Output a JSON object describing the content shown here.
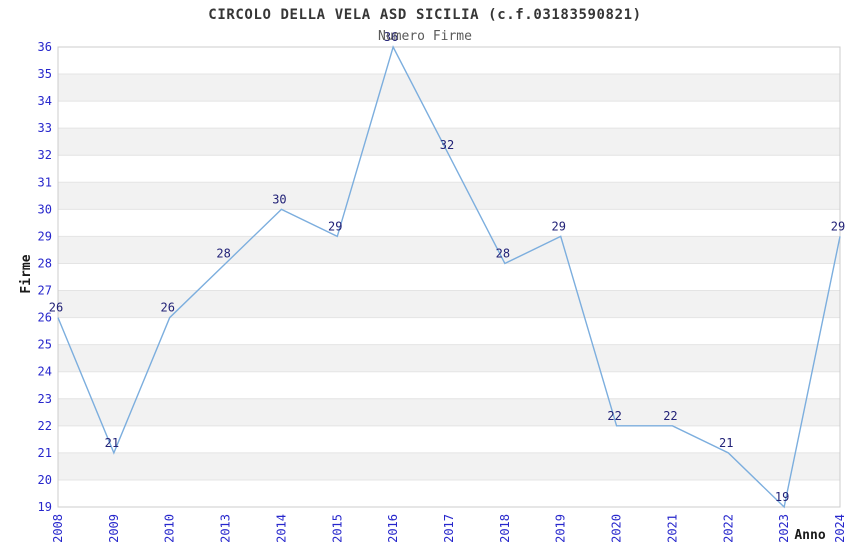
{
  "chart_data": {
    "type": "line",
    "title": "CIRCOLO DELLA VELA ASD SICILIA (c.f.03183590821)",
    "subtitle": "Numero Firme",
    "xlabel": "Anno",
    "ylabel": "Firme",
    "categories": [
      "2008",
      "2009",
      "2010",
      "2013",
      "2014",
      "2015",
      "2016",
      "2017",
      "2018",
      "2019",
      "2020",
      "2021",
      "2022",
      "2023",
      "2024"
    ],
    "values": [
      26,
      21,
      26,
      28,
      30,
      29,
      36,
      32,
      28,
      29,
      22,
      22,
      21,
      19,
      29
    ],
    "ylim": [
      19,
      36
    ],
    "ytick_step": 1,
    "legend": "none",
    "grid": "horizontal-stripes",
    "value_labels_shown": true,
    "colors": {
      "line": "#7caede",
      "tick_label": "#2727cc",
      "value_label": "#222277",
      "title": "#363636",
      "subtitle": "#5a5a5a",
      "axis_label": "#1a1a1a",
      "stripe_band": "#f2f2f2",
      "gridline": "#e4e4e4",
      "frame": "#cccccc",
      "background": "#ffffff"
    }
  }
}
